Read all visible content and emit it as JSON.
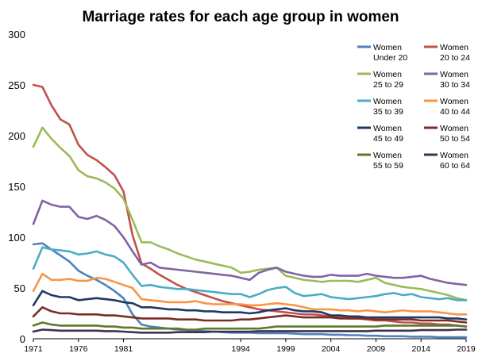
{
  "chart_data": {
    "type": "line",
    "title": "Marriage rates for each age group in women",
    "xlabel": "",
    "ylabel": "",
    "xlim": [
      1971,
      2019
    ],
    "ylim": [
      0,
      300
    ],
    "y_ticks": [
      0,
      50,
      100,
      150,
      200,
      250,
      300
    ],
    "x_ticks": [
      1971,
      1976,
      1981,
      1994,
      1999,
      2004,
      2009,
      2014,
      2019
    ],
    "grid": false,
    "legend_position": "top-right",
    "x": [
      1971,
      1972,
      1973,
      1974,
      1975,
      1976,
      1977,
      1978,
      1979,
      1980,
      1981,
      1982,
      1983,
      1984,
      1985,
      1986,
      1987,
      1988,
      1989,
      1990,
      1991,
      1992,
      1993,
      1994,
      1995,
      1996,
      1997,
      1998,
      1999,
      2000,
      2001,
      2002,
      2003,
      2004,
      2005,
      2006,
      2007,
      2008,
      2009,
      2010,
      2011,
      2012,
      2013,
      2014,
      2015,
      2016,
      2017,
      2018,
      2019
    ],
    "series": [
      {
        "name": "Women Under 20",
        "label_lines": [
          "Women",
          "Under 20"
        ],
        "color": "#4f81bd",
        "values": [
          93,
          94,
          88,
          82,
          76,
          67,
          62,
          58,
          53,
          47,
          40,
          24,
          14,
          12,
          11,
          10,
          9,
          8.5,
          8,
          7.5,
          7,
          6.5,
          6,
          6,
          6,
          5.5,
          5.5,
          5.5,
          5.5,
          5,
          4.5,
          4.5,
          4.5,
          4,
          4,
          3.5,
          3.5,
          3,
          3,
          2.5,
          2.5,
          2.5,
          2,
          2,
          2,
          1.5,
          1.5,
          1.5,
          1.5
        ]
      },
      {
        "name": "Women 20 to 24",
        "label_lines": [
          "Women",
          "20 to 24"
        ],
        "color": "#c0504d",
        "values": [
          250,
          248,
          230,
          216,
          211,
          191,
          181,
          176,
          169,
          161,
          145,
          102,
          74,
          69,
          63,
          58,
          53,
          49,
          46,
          43,
          40,
          37,
          35,
          33,
          31,
          29,
          28,
          27,
          26,
          25,
          24,
          24,
          23,
          22,
          21,
          20,
          20,
          19,
          18,
          18,
          17,
          16,
          16,
          15,
          15,
          14,
          14,
          13,
          12
        ]
      },
      {
        "name": "Women 25 to 29",
        "label_lines": [
          "Women",
          "25 to 29"
        ],
        "color": "#9bbb59",
        "values": [
          189,
          208,
          197,
          188,
          180,
          166,
          160,
          158,
          154,
          148,
          138,
          117,
          95,
          95,
          91,
          88,
          84,
          81,
          78,
          76,
          74,
          72,
          70,
          65,
          66,
          68,
          69,
          70,
          62,
          60,
          58,
          57,
          56,
          57,
          57,
          57,
          56,
          58,
          60,
          55,
          53,
          51,
          50,
          49,
          47,
          45,
          43,
          40,
          38
        ]
      },
      {
        "name": "Women 30 to 34",
        "label_lines": [
          "Women",
          "30 to 34"
        ],
        "color": "#8064a2",
        "values": [
          113,
          136,
          132,
          130,
          130,
          120,
          118,
          121,
          117,
          111,
          100,
          86,
          73,
          75,
          70,
          69,
          68,
          67,
          66,
          65,
          64,
          63,
          62,
          60,
          58,
          65,
          68,
          70,
          66,
          64,
          62,
          61,
          61,
          63,
          62,
          62,
          62,
          64,
          62,
          61,
          60,
          60,
          61,
          62,
          59,
          57,
          55,
          54,
          53
        ]
      },
      {
        "name": "Women 35 to 39",
        "label_lines": [
          "Women",
          "35 to 39"
        ],
        "color": "#4bacc6",
        "values": [
          69,
          90,
          88,
          87,
          86,
          83,
          84,
          86,
          83,
          81,
          75,
          63,
          52,
          53,
          51,
          50,
          49,
          49,
          48,
          47,
          46,
          45,
          44,
          44,
          41,
          44,
          48,
          50,
          51,
          45,
          42,
          43,
          44,
          41,
          40,
          39,
          40,
          41,
          42,
          44,
          45,
          43,
          44,
          41,
          40,
          39,
          40,
          38,
          38
        ]
      },
      {
        "name": "Women 40 to 44",
        "label_lines": [
          "Women",
          "40 to 44"
        ],
        "color": "#f79646",
        "values": [
          47,
          64,
          58,
          58,
          59,
          57,
          57,
          60,
          59,
          56,
          53,
          50,
          39,
          38,
          37,
          36,
          36,
          36,
          37,
          35,
          34,
          34,
          34,
          34,
          33,
          33,
          34,
          35,
          34,
          33,
          31,
          29,
          29,
          29,
          28,
          28,
          27,
          28,
          27,
          26,
          27,
          28,
          27,
          27,
          27,
          26,
          25,
          24,
          24
        ]
      },
      {
        "name": "Women 45 to 49",
        "label_lines": [
          "Women",
          "45 to 49"
        ],
        "color": "#1f3864",
        "values": [
          33,
          47,
          43,
          41,
          41,
          38,
          39,
          40,
          39,
          38,
          36,
          35,
          31,
          31,
          30,
          29,
          29,
          28,
          28,
          27,
          27,
          26,
          26,
          26,
          25,
          26,
          28,
          29,
          30,
          28,
          27,
          27,
          26,
          23,
          23,
          22,
          22,
          21,
          21,
          21,
          21,
          21,
          21,
          21,
          21,
          21,
          20,
          20,
          19
        ]
      },
      {
        "name": "Women 50 to 54",
        "label_lines": [
          "Women",
          "50 to 54"
        ],
        "color": "#7b2c26",
        "values": [
          22,
          31,
          27,
          25,
          25,
          24,
          24,
          24,
          23,
          23,
          22,
          21,
          20,
          20,
          20,
          20,
          19,
          19,
          19,
          18,
          18,
          18,
          18,
          19,
          19,
          20,
          21,
          22,
          23,
          22,
          21,
          21,
          21,
          21,
          20,
          20,
          20,
          20,
          19,
          19,
          19,
          19,
          19,
          18,
          18,
          18,
          18,
          17,
          16
        ]
      },
      {
        "name": "Women 55 to 59",
        "label_lines": [
          "Women",
          "55 to 59"
        ],
        "color": "#5b7a2a",
        "values": [
          13,
          16,
          14,
          13,
          13,
          13,
          13,
          13,
          12,
          12,
          11,
          11,
          10,
          10,
          10,
          10,
          10,
          9,
          9,
          10,
          10,
          10,
          10,
          10,
          10,
          10,
          11,
          12,
          12,
          12,
          12,
          12,
          12,
          12,
          12,
          12,
          12,
          12,
          12,
          13,
          13,
          13,
          13,
          13,
          13,
          13,
          13,
          13,
          12
        ]
      },
      {
        "name": "Women 60 to 64",
        "label_lines": [
          "Women",
          "60 to 64"
        ],
        "color": "#3f3151",
        "values": [
          7,
          9,
          8.5,
          8,
          8,
          8,
          8,
          8,
          7.5,
          7.5,
          7,
          6.5,
          6,
          6,
          6,
          6,
          6.5,
          6.5,
          6.5,
          6.5,
          7,
          7,
          7,
          7,
          7,
          7.5,
          7.5,
          7.5,
          7.5,
          7.5,
          7.5,
          7.5,
          7.5,
          7.5,
          7.5,
          7.5,
          7.5,
          7.5,
          8,
          8,
          8,
          8,
          8,
          8.5,
          8.5,
          8.5,
          8.5,
          9,
          9
        ]
      }
    ]
  }
}
